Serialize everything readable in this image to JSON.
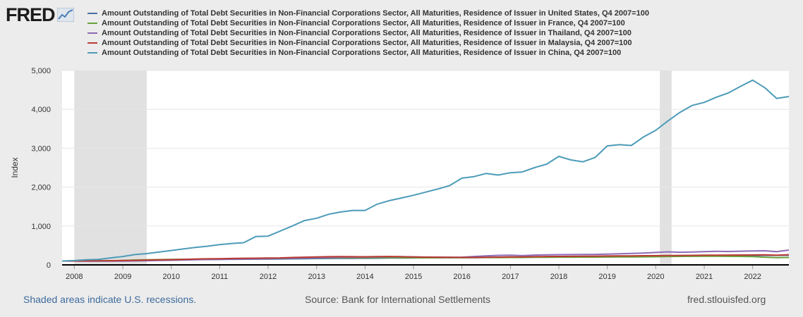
{
  "logo": {
    "text": "FRED",
    "icon": "fred-chart-icon"
  },
  "chart_data": {
    "type": "line",
    "title": "",
    "ylabel": "Index",
    "xlabel": "",
    "ylim": [
      0,
      5000
    ],
    "yticks": [
      0,
      1000,
      2000,
      3000,
      4000,
      5000
    ],
    "ytick_labels": [
      "0",
      "1,000",
      "2,000",
      "3,000",
      "4,000",
      "5,000"
    ],
    "xlim": [
      "2007-10-01",
      "2022-10-01"
    ],
    "xticks": [
      "2008",
      "2009",
      "2010",
      "2011",
      "2012",
      "2013",
      "2014",
      "2015",
      "2016",
      "2017",
      "2018",
      "2019",
      "2020",
      "2021",
      "2022"
    ],
    "grid": true,
    "legend_position": "top",
    "recessions": [
      [
        "2008-01-01",
        "2009-06-30"
      ],
      [
        "2020-02-01",
        "2020-04-30"
      ]
    ],
    "x": [
      "2007-10-01",
      "2008-01-01",
      "2008-04-01",
      "2008-07-01",
      "2008-10-01",
      "2009-01-01",
      "2009-04-01",
      "2009-07-01",
      "2009-10-01",
      "2010-01-01",
      "2010-04-01",
      "2010-07-01",
      "2010-10-01",
      "2011-01-01",
      "2011-04-01",
      "2011-07-01",
      "2011-10-01",
      "2012-01-01",
      "2012-04-01",
      "2012-07-01",
      "2012-10-01",
      "2013-01-01",
      "2013-04-01",
      "2013-07-01",
      "2013-10-01",
      "2014-01-01",
      "2014-04-01",
      "2014-07-01",
      "2014-10-01",
      "2015-01-01",
      "2015-04-01",
      "2015-07-01",
      "2015-10-01",
      "2016-01-01",
      "2016-04-01",
      "2016-07-01",
      "2016-10-01",
      "2017-01-01",
      "2017-04-01",
      "2017-07-01",
      "2017-10-01",
      "2018-01-01",
      "2018-04-01",
      "2018-07-01",
      "2018-10-01",
      "2019-01-01",
      "2019-04-01",
      "2019-07-01",
      "2019-10-01",
      "2020-01-01",
      "2020-04-01",
      "2020-07-01",
      "2020-10-01",
      "2021-01-01",
      "2021-04-01",
      "2021-07-01",
      "2021-10-01",
      "2022-01-01",
      "2022-04-01",
      "2022-07-01",
      "2022-10-01"
    ],
    "series": [
      {
        "name": "Amount Outstanding of Total Debt Securities in Non-Financial Corporations Sector, All Maturities, Residence of Issuer in United States, Q4 2007=100",
        "color": "#4572a7",
        "values": [
          100,
          100,
          102,
          103,
          104,
          110,
          118,
          122,
          125,
          128,
          131,
          135,
          138,
          141,
          143,
          145,
          147,
          150,
          153,
          156,
          160,
          163,
          165,
          167,
          169,
          171,
          173,
          175,
          177,
          179,
          181,
          183,
          185,
          187,
          189,
          191,
          193,
          195,
          197,
          200,
          203,
          206,
          208,
          210,
          212,
          214,
          216,
          218,
          220,
          222,
          230,
          234,
          236,
          238,
          240,
          241,
          242,
          243,
          244,
          245,
          246
        ]
      },
      {
        "name": "Amount Outstanding of Total Debt Securities in Non-Financial Corporations Sector, All Maturities, Residence of Issuer in France, Q4 2007=100",
        "color": "#6aa13a",
        "values": [
          100,
          101,
          103,
          105,
          107,
          115,
          125,
          132,
          136,
          140,
          143,
          146,
          149,
          152,
          154,
          156,
          158,
          162,
          166,
          170,
          174,
          177,
          179,
          181,
          182,
          183,
          184,
          185,
          184,
          183,
          182,
          183,
          184,
          186,
          187,
          188,
          189,
          190,
          191,
          193,
          195,
          197,
          198,
          199,
          200,
          201,
          202,
          204,
          206,
          208,
          215,
          218,
          220,
          222,
          221,
          220,
          218,
          212,
          198,
          185,
          190
        ]
      },
      {
        "name": "Amount Outstanding of Total Debt Securities in Non-Financial Corporations Sector, All Maturities, Residence of Issuer in Thailand, Q4 2007=100",
        "color": "#8e6bb6",
        "values": [
          100,
          98,
          96,
          95,
          94,
          97,
          102,
          107,
          112,
          118,
          125,
          132,
          138,
          142,
          146,
          150,
          155,
          160,
          166,
          172,
          178,
          183,
          188,
          193,
          197,
          200,
          205,
          208,
          210,
          205,
          200,
          198,
          196,
          198,
          215,
          232,
          245,
          250,
          238,
          252,
          258,
          262,
          265,
          268,
          270,
          278,
          285,
          295,
          305,
          318,
          335,
          325,
          332,
          340,
          350,
          345,
          352,
          358,
          362,
          340,
          380
        ]
      },
      {
        "name": "Amount Outstanding of Total Debt Securities in Non-Financial Corporations Sector, All Maturities, Residence of Issuer in Malaysia, Q4 2007=100",
        "color": "#b93a32",
        "values": [
          100,
          100,
          102,
          104,
          106,
          110,
          116,
          122,
          128,
          134,
          140,
          148,
          155,
          160,
          165,
          170,
          172,
          175,
          180,
          190,
          197,
          205,
          210,
          212,
          210,
          208,
          212,
          215,
          210,
          205,
          200,
          198,
          195,
          192,
          190,
          195,
          200,
          203,
          205,
          210,
          215,
          218,
          220,
          222,
          225,
          228,
          230,
          232,
          235,
          238,
          240,
          242,
          245,
          248,
          250,
          252,
          254,
          256,
          258,
          250,
          260
        ]
      },
      {
        "name": "Amount Outstanding of Total Debt Securities in Non-Financial Corporations Sector, All Maturities, Residence of Issuer in China, Q4 2007=100",
        "color": "#4d9bb8",
        "values": [
          100,
          110,
          130,
          140,
          180,
          215,
          265,
          290,
          330,
          370,
          410,
          450,
          480,
          520,
          550,
          570,
          730,
          740,
          870,
          1000,
          1140,
          1200,
          1300,
          1360,
          1400,
          1400,
          1560,
          1650,
          1720,
          1790,
          1870,
          1950,
          2040,
          2230,
          2270,
          2350,
          2310,
          2370,
          2390,
          2500,
          2590,
          2790,
          2700,
          2650,
          2760,
          3060,
          3090,
          3070,
          3290,
          3460,
          3700,
          3920,
          4100,
          4180,
          4310,
          4420,
          4590,
          4750,
          4560,
          4280,
          4330
        ]
      }
    ]
  },
  "footer": {
    "recession_note": "Shaded areas indicate U.S. recessions.",
    "source": "Source: Bank for International Settlements",
    "site": "fred.stlouisfed.org"
  }
}
